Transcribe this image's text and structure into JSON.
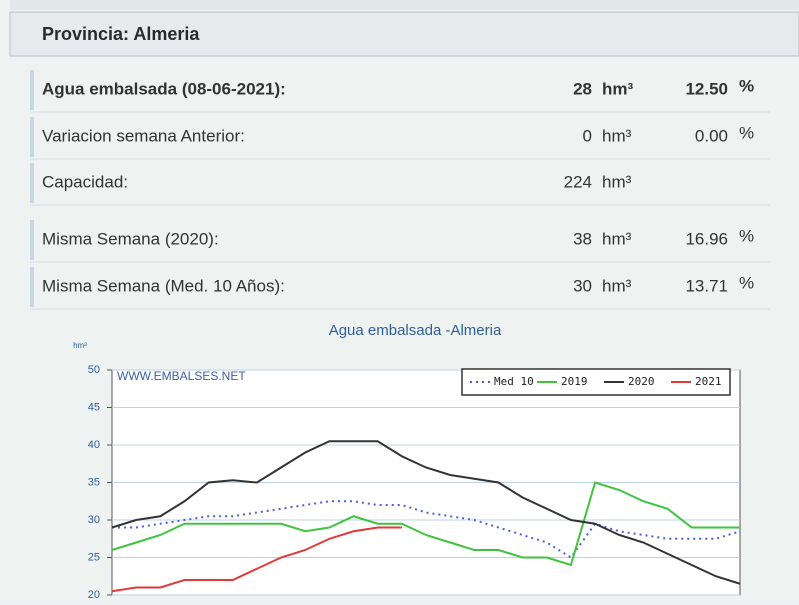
{
  "header": {
    "title": "Provincia: Almeria"
  },
  "table": {
    "rows": [
      {
        "label": "Agua embalsada (08-06-2021):",
        "value": "28",
        "unit": "hm³",
        "percent": "12.50",
        "percent_unit": "%"
      },
      {
        "label": "Variacion semana Anterior:",
        "value": "0",
        "unit": "hm³",
        "percent": "0.00",
        "percent_unit": "%"
      },
      {
        "label": "Capacidad:",
        "value": "224",
        "unit": "hm³"
      },
      {
        "label": "Misma Semana (2020):",
        "value": "38",
        "unit": "hm³",
        "percent": "16.96",
        "percent_unit": "%"
      },
      {
        "label": "Misma Semana (Med. 10 Años):",
        "value": "30",
        "unit": "hm³",
        "percent": "13.71",
        "percent_unit": "%"
      }
    ]
  },
  "chart_data": {
    "type": "line",
    "title": "Agua embalsada -Almeria",
    "y_label": "hm³",
    "watermark": "WWW.EMBALSES.NET",
    "categories": [
      null,
      null,
      null,
      null,
      null,
      null,
      null,
      null,
      null,
      null,
      null,
      null,
      null,
      null,
      null,
      null,
      null,
      null,
      null,
      null,
      null,
      null,
      null,
      null,
      null,
      null,
      null
    ],
    "series": [
      {
        "name": "Med 10",
        "color": "#4a5ee0",
        "style": "dotted",
        "values": [
          29,
          29,
          29.5,
          30,
          30.5,
          30.5,
          31,
          31.5,
          32,
          32.5,
          32.5,
          32,
          32,
          31,
          30.5,
          30,
          29,
          28,
          27,
          25,
          29.5,
          28.5,
          28,
          27.5,
          27.5,
          27.5,
          28.5
        ]
      },
      {
        "name": "2019",
        "color": "#3ec43e",
        "style": "solid",
        "values": [
          26,
          27,
          28,
          29.5,
          29.5,
          29.5,
          29.5,
          29.5,
          28.5,
          29,
          30.5,
          29.5,
          29.5,
          28,
          27,
          26,
          26,
          25,
          25,
          24,
          35,
          34,
          32.5,
          31.5,
          29,
          29,
          29
        ]
      },
      {
        "name": "2020",
        "color": "#333333",
        "style": "solid",
        "values": [
          29,
          30,
          30.5,
          32.5,
          35,
          35.3,
          35,
          37,
          39,
          40.5,
          40.5,
          40.5,
          38.5,
          37,
          36,
          35.5,
          35,
          33,
          31.5,
          30,
          29.5,
          28,
          27,
          25.5,
          24,
          22.5,
          21.5
        ]
      },
      {
        "name": "2021",
        "color": "#e03a3a",
        "style": "solid",
        "values": [
          20.5,
          21,
          21,
          22,
          22,
          22,
          23.5,
          25,
          26,
          27.5,
          28.5,
          29,
          29,
          null,
          null,
          null,
          null,
          null,
          null,
          null,
          null,
          null,
          null,
          null,
          null,
          null,
          null
        ]
      }
    ],
    "ylim": [
      20,
      50
    ],
    "yticks": [
      20,
      25,
      30,
      35,
      40,
      45,
      50
    ],
    "grid": true,
    "legend": "upper right"
  }
}
